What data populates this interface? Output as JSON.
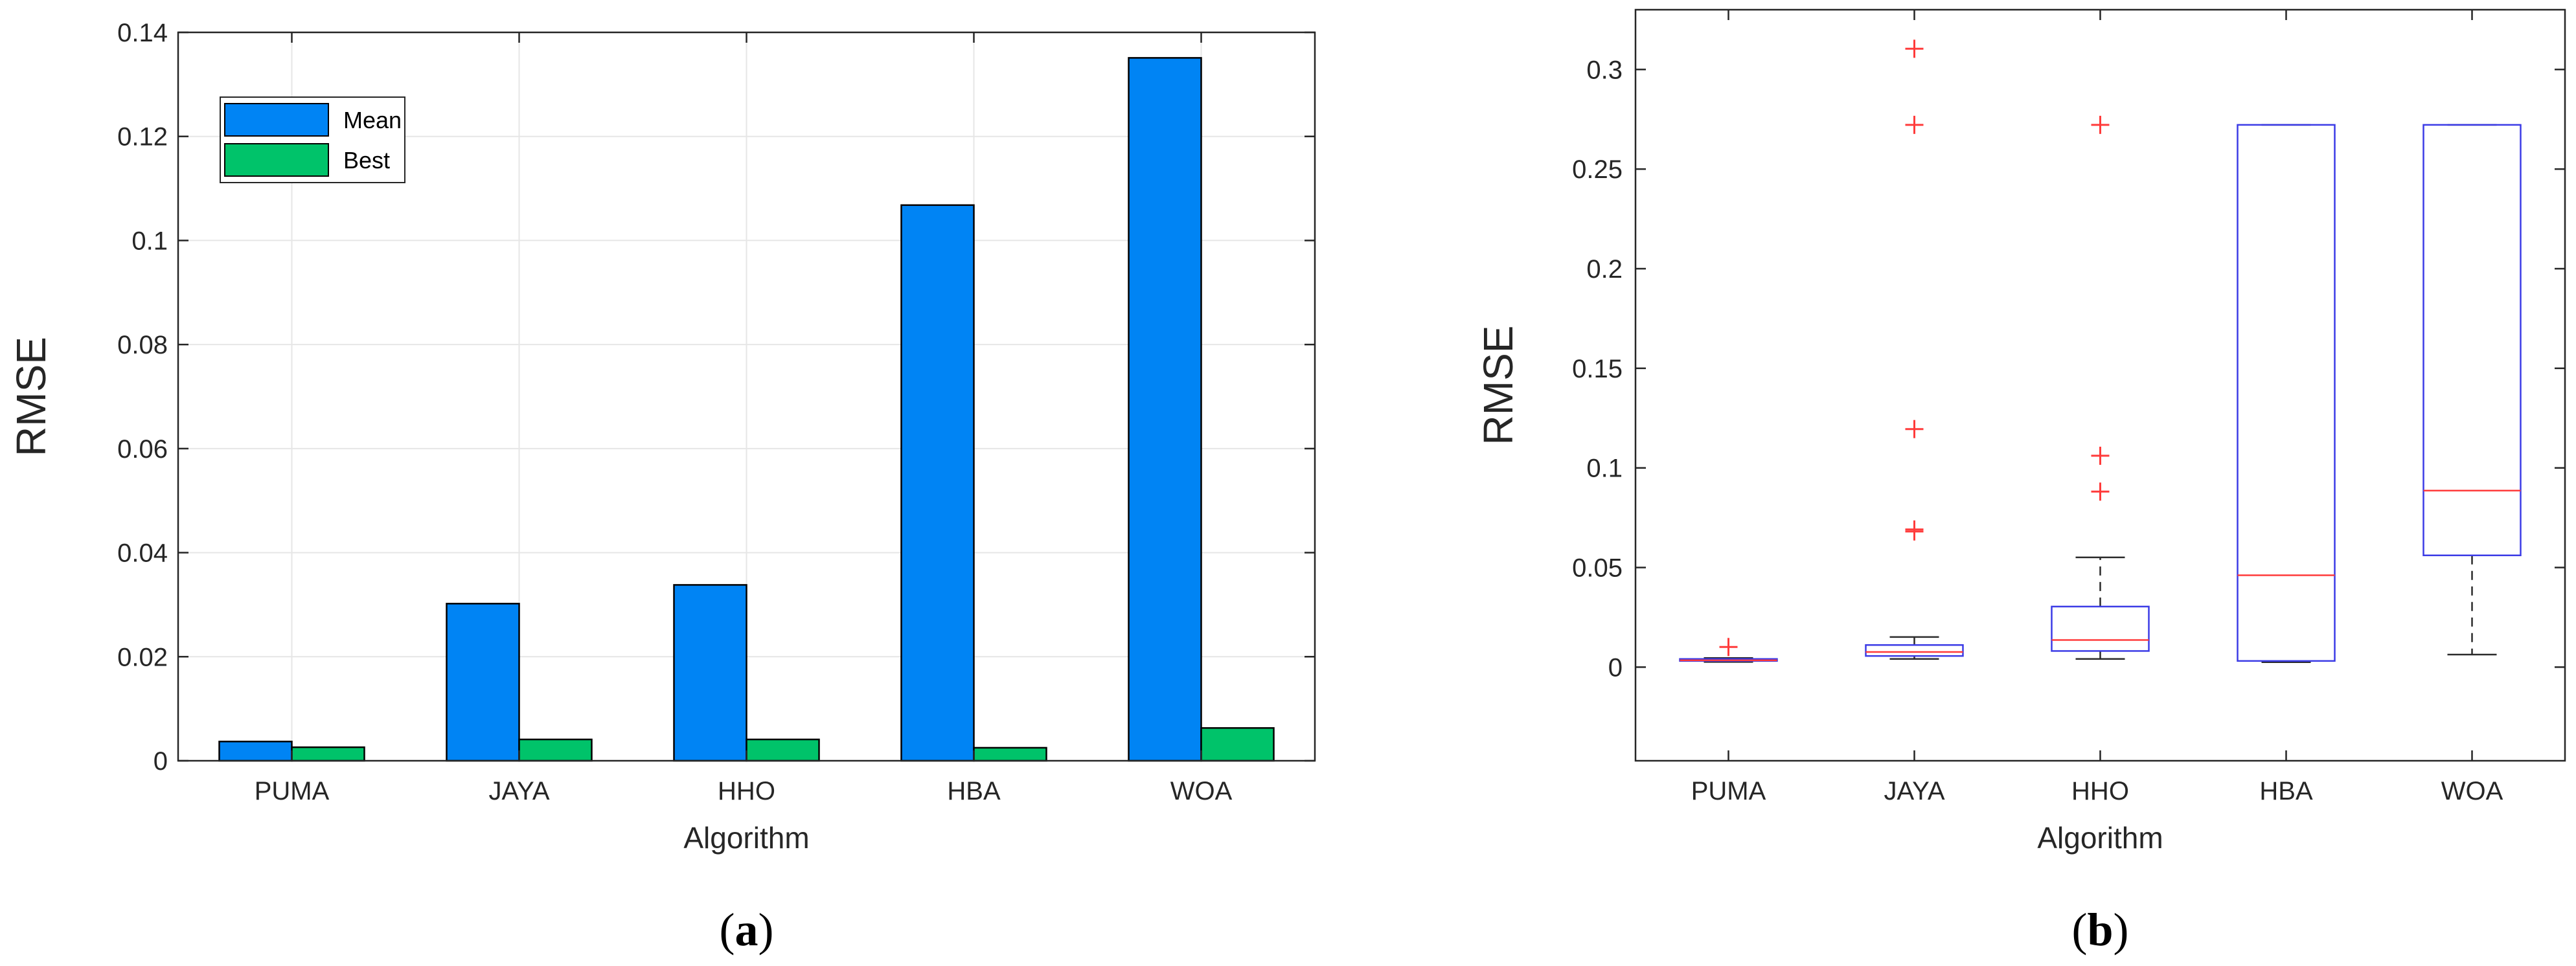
{
  "captions": {
    "a": "a",
    "b": "b"
  },
  "colors": {
    "mean": "#0084F4",
    "best": "#00C36A",
    "grid": "#e6e6e6",
    "axis": "#262626",
    "box": "#3B3BE6",
    "median": "#FF3B3B",
    "outlier": "#FF3B3B",
    "whisker": "#2b2b2b"
  },
  "chart_data": [
    {
      "type": "bar",
      "categories": [
        "PUMA",
        "JAYA",
        "HHO",
        "HBA",
        "WOA"
      ],
      "series": [
        {
          "name": "Mean",
          "values": [
            0.0037,
            0.0302,
            0.0338,
            0.1068,
            0.1351
          ]
        },
        {
          "name": "Best",
          "values": [
            0.0026,
            0.0041,
            0.0041,
            0.0025,
            0.0063
          ]
        }
      ],
      "xlabel": "Algorithm",
      "ylabel": "RMSE",
      "ylim": [
        0,
        0.14
      ],
      "yticks": [
        0,
        0.02,
        0.04,
        0.06,
        0.08,
        0.1,
        0.12,
        0.14
      ],
      "ytick_labels": [
        "0",
        "0.02",
        "0.04",
        "0.06",
        "0.08",
        "0.1",
        "0.12",
        "0.14"
      ],
      "grid": true,
      "legend_position": "top-left"
    },
    {
      "type": "box",
      "categories": [
        "PUMA",
        "JAYA",
        "HHO",
        "HBA",
        "WOA"
      ],
      "boxes": [
        {
          "whisker_low": 0.0026,
          "q1": 0.0031,
          "median": 0.0034,
          "q3": 0.0041,
          "whisker_high": 0.0046,
          "outliers": [
            0.0101
          ]
        },
        {
          "whisker_low": 0.0041,
          "q1": 0.0056,
          "median": 0.0076,
          "q3": 0.0111,
          "whisker_high": 0.0151,
          "outliers": [
            0.0681,
            0.0691,
            0.1195,
            0.2722,
            0.3104
          ]
        },
        {
          "whisker_low": 0.0041,
          "q1": 0.0081,
          "median": 0.0136,
          "q3": 0.0304,
          "whisker_high": 0.0551,
          "outliers": [
            0.0881,
            0.1061,
            0.2722
          ]
        },
        {
          "whisker_low": 0.0025,
          "q1": 0.0031,
          "median": 0.0461,
          "q3": 0.2722,
          "whisker_high": 0.2722,
          "outliers": []
        },
        {
          "whisker_low": 0.0063,
          "q1": 0.0561,
          "median": 0.0886,
          "q3": 0.2722,
          "whisker_high": 0.2722,
          "outliers": []
        }
      ],
      "xlabel": "Algorithm",
      "ylabel": "RMSE",
      "ylim": [
        -0.047,
        0.33
      ],
      "yticks": [
        0,
        0.05,
        0.1,
        0.15,
        0.2,
        0.25,
        0.3
      ],
      "ytick_labels": [
        "0",
        "0.05",
        "0.1",
        "0.15",
        "0.2",
        "0.25",
        "0.3"
      ],
      "grid": false
    }
  ]
}
